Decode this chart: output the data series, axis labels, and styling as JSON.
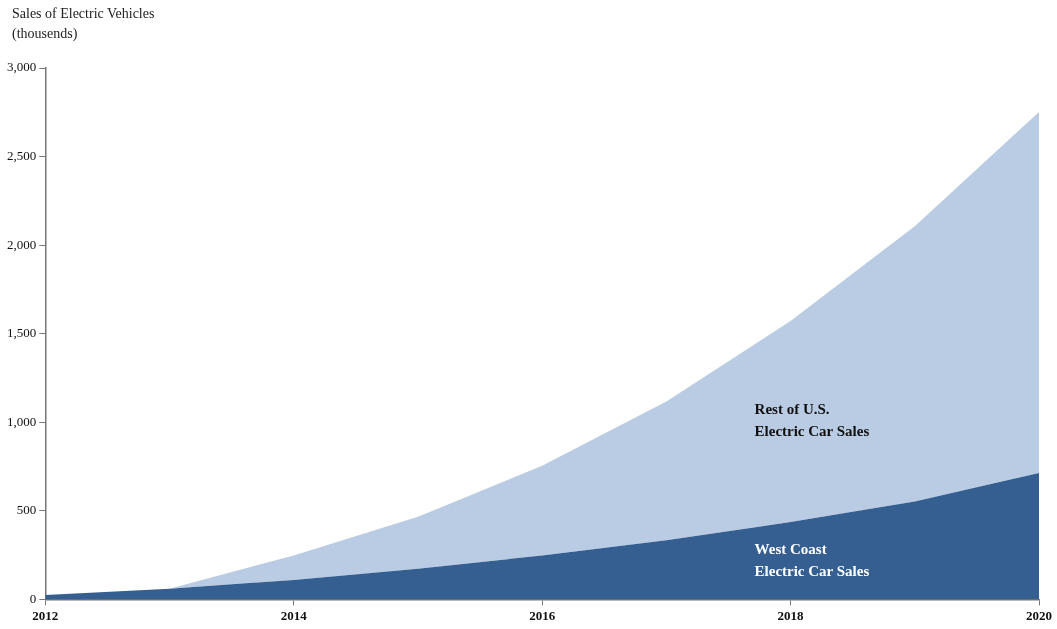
{
  "chart_data": {
    "type": "area",
    "ylabel": "Sales of Electric Vehicles (thousends)",
    "stacked": true,
    "x": [
      2012,
      2013,
      2014,
      2015,
      2016,
      2017,
      2018,
      2019,
      2020
    ],
    "series": [
      {
        "name": "West Coast Electric Car Sales",
        "color": "#365f91",
        "values": [
          25,
          60,
          110,
          173,
          248,
          334,
          437,
          553,
          714
        ]
      },
      {
        "name": "Rest of U.S. Electric Car Sales",
        "color": "#b9cce4",
        "values": [
          0,
          0,
          138,
          293,
          506,
          783,
          1135,
          1554,
          2038
        ]
      }
    ],
    "xlim": [
      2012,
      2020
    ],
    "xticks": [
      2012,
      2014,
      2016,
      2018,
      2020
    ],
    "ylim": [
      0,
      3000
    ],
    "yticks": [
      0,
      500,
      {
        "value": 1000,
        "label": "1,000"
      },
      {
        "value": 1500,
        "label": "1,500"
      },
      {
        "value": 2000,
        "label": "2,000"
      },
      {
        "value": 2500,
        "label": "2,500"
      },
      {
        "value": 3000,
        "label": "3,000"
      }
    ],
    "grid": false,
    "legend": false
  }
}
